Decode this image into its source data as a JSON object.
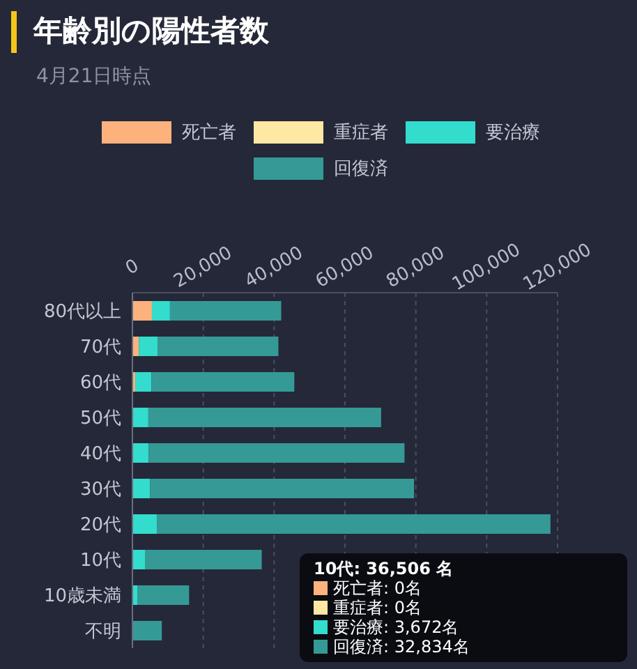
{
  "chart_data": {
    "type": "bar",
    "orientation": "horizontal",
    "stacked": true,
    "title": "年齢別の陽性者数",
    "subtitle": "4月21日時点",
    "categories": [
      "80代以上",
      "70代",
      "60代",
      "50代",
      "40代",
      "30代",
      "20代",
      "10代",
      "10歳未満",
      "不明"
    ],
    "series": [
      {
        "name": "死亡者",
        "color": "#fdb27e",
        "values": [
          5500,
          1800,
          800,
          null,
          100,
          0,
          0,
          0,
          0,
          0
        ]
      },
      {
        "name": "重症者",
        "color": "#ffe8a3",
        "values": [
          0,
          0,
          0,
          0,
          0,
          0,
          0,
          0,
          0,
          0
        ]
      },
      {
        "name": "要治療",
        "color": "#33dccd",
        "values": [
          5100,
          5300,
          4600,
          4500,
          4500,
          5000,
          7000,
          3672,
          1500,
          200
        ]
      },
      {
        "name": "回復済",
        "color": "#359a96",
        "values": [
          31400,
          34100,
          40300,
          65700,
          72200,
          74500,
          111000,
          32834,
          14500,
          8100
        ]
      }
    ],
    "xlim": [
      0,
      120000
    ],
    "xticks": [
      {
        "value": 0,
        "label": "0"
      },
      {
        "value": 20000,
        "label": "20,000"
      },
      {
        "value": 40000,
        "label": "40,000"
      },
      {
        "value": 60000,
        "label": "60,000"
      },
      {
        "value": 80000,
        "label": "80,000"
      },
      {
        "value": 100000,
        "label": "100,000"
      },
      {
        "value": 120000,
        "label": "120,000"
      }
    ],
    "grid": "x",
    "legend": "top",
    "annotations": [
      "10代: 36,506 名",
      "死亡者: 0名",
      "重症者: 0名",
      "要治療: 3,672名",
      "回復済: 32,834名"
    ]
  }
}
